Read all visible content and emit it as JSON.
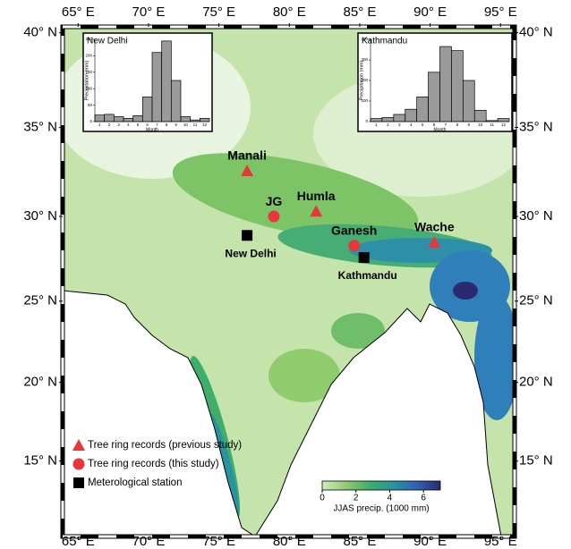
{
  "map": {
    "lonlim": [
      63.9,
      96.0
    ],
    "latlim": [
      10.1,
      40.3
    ],
    "lonticks": [
      {
        "value": 65,
        "label": "65° E"
      },
      {
        "value": 70,
        "label": "70° E"
      },
      {
        "value": 75,
        "label": "75° E"
      },
      {
        "value": 80,
        "label": "80° E"
      },
      {
        "value": 85,
        "label": "85° E"
      },
      {
        "value": 90,
        "label": "90° E"
      },
      {
        "value": 95,
        "label": "95° E"
      }
    ],
    "latticks": [
      {
        "value": 40,
        "label": "40° N"
      },
      {
        "value": 35,
        "label": "35° N"
      },
      {
        "value": 30,
        "label": "30° N"
      },
      {
        "value": 25,
        "label": "25° N"
      },
      {
        "value": 20,
        "label": "20° N"
      },
      {
        "value": 15,
        "label": "15° N"
      }
    ],
    "sites": [
      {
        "label": "Manali",
        "kind": "previous",
        "lon": 77.0,
        "lat": 32.6
      },
      {
        "label": "JG",
        "kind": "this",
        "lon": 78.9,
        "lat": 30.0
      },
      {
        "label": "Humla",
        "kind": "previous",
        "lon": 81.9,
        "lat": 30.3
      },
      {
        "label": "Ganesh",
        "kind": "this",
        "lon": 84.6,
        "lat": 28.3
      },
      {
        "label": "Wache",
        "kind": "previous",
        "lon": 90.3,
        "lat": 28.5
      },
      {
        "label": "New Delhi",
        "kind": "station",
        "lon": 77.0,
        "lat": 28.9
      },
      {
        "label": "Kathmandu",
        "kind": "station",
        "lon": 85.3,
        "lat": 27.6
      }
    ],
    "legend": [
      {
        "kind": "previous",
        "label": "Tree ring records (previous study)"
      },
      {
        "kind": "this",
        "label": "Tree ring records (this study)"
      },
      {
        "kind": "station",
        "label": "Meterological station"
      }
    ],
    "colorbar": {
      "label": "JJAS precip. (1000 mm)",
      "lim": [
        0,
        7
      ],
      "ticks": [
        0,
        2,
        4,
        6
      ],
      "colors": [
        "#d3ecc0",
        "#8fcc6e",
        "#3fae6a",
        "#2a93a0",
        "#2f63b5",
        "#2b2a6e"
      ]
    },
    "insets": [
      {
        "type": "bar",
        "title": "New Delhi",
        "ylabel": "Precipitation (mm)",
        "xlabel": "Month",
        "color": "#9a9a9a",
        "categories": [
          "1",
          "2",
          "3",
          "4",
          "5",
          "6",
          "7",
          "8",
          "9",
          "10",
          "11",
          "12"
        ],
        "values": [
          20,
          22,
          15,
          10,
          18,
          75,
          210,
          245,
          125,
          15,
          5,
          10
        ],
        "ylim": [
          0,
          250
        ],
        "yticks": [
          0,
          50,
          100,
          150,
          200,
          250
        ]
      },
      {
        "type": "bar",
        "title": "Kathmandu",
        "ylabel": "Precipitation (mm)",
        "xlabel": "Month",
        "color": "#9a9a9a",
        "categories": [
          "1",
          "2",
          "3",
          "4",
          "5",
          "6",
          "7",
          "8",
          "9",
          "10",
          "11",
          "12"
        ],
        "values": [
          15,
          20,
          35,
          60,
          120,
          240,
          365,
          345,
          200,
          55,
          5,
          15
        ],
        "ylim": [
          0,
          400
        ],
        "yticks": [
          0,
          100,
          200,
          300,
          400
        ]
      }
    ]
  }
}
